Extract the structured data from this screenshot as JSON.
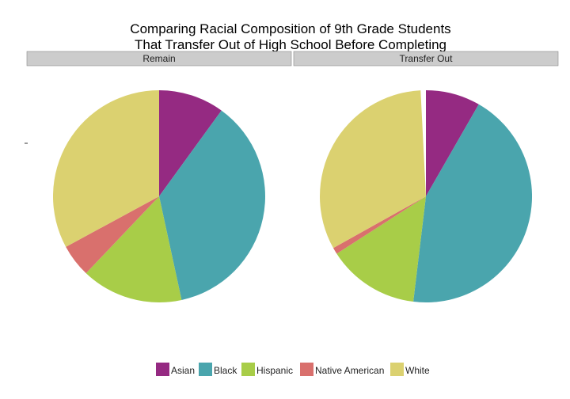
{
  "chart_data": {
    "type": "pie",
    "title_lines": [
      "Comparing Racial Composition of 9th Grade Students",
      "That Transfer Out of High School Before Completing"
    ],
    "categories": [
      "Asian",
      "Black",
      "Hispanic",
      "Native American",
      "White"
    ],
    "colors": {
      "Asian": "#952a82",
      "Black": "#4aa5ad",
      "Hispanic": "#a8cd48",
      "Native American": "#d9706d",
      "White": "#dbd170"
    },
    "strip_fill": "#cccccc",
    "panels": [
      {
        "label": "Remain",
        "values": [
          0.1,
          0.366,
          0.155,
          0.05,
          0.329
        ],
        "white_gap": 0.0
      },
      {
        "label": "Transfer Out",
        "values": [
          0.083,
          0.436,
          0.14,
          0.01,
          0.323
        ],
        "white_gap": 0.008
      }
    ],
    "legend_position": "bottom"
  }
}
